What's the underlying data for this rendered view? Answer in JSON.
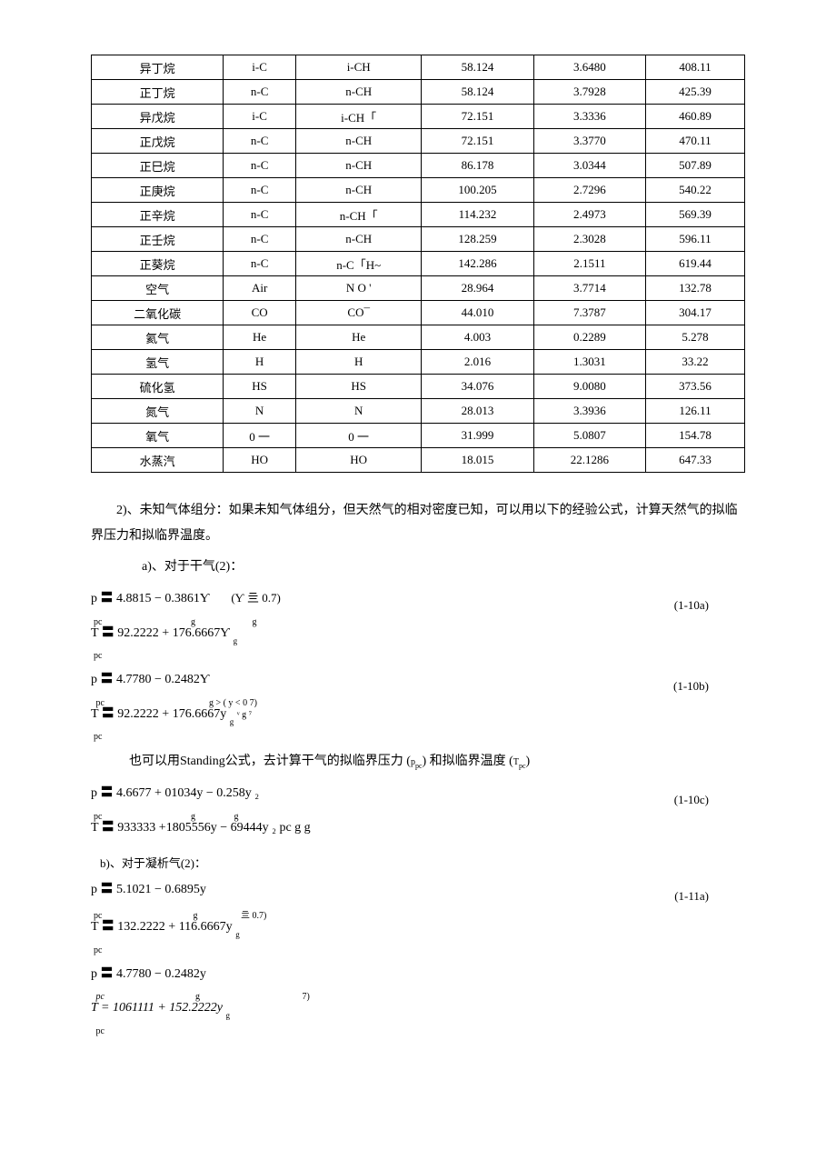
{
  "table": {
    "rows": [
      [
        "异丁烷",
        "i-C",
        "i-CH",
        "58.124",
        "3.6480",
        "408.11"
      ],
      [
        "正丁烷",
        "n-C",
        "n-CH",
        "58.124",
        "3.7928",
        "425.39"
      ],
      [
        "异戊烷",
        "i-C",
        "i-CH「",
        "72.151",
        "3.3336",
        "460.89"
      ],
      [
        "正戊烷",
        "n-C",
        "n-CH",
        "72.151",
        "3.3770",
        "470.11"
      ],
      [
        "正巳烷",
        "n-C",
        "n-CH",
        "86.178",
        "3.0344",
        "507.89"
      ],
      [
        "正庚烷",
        "n-C",
        "n-CH",
        "100.205",
        "2.7296",
        "540.22"
      ],
      [
        "正辛烷",
        "n-C",
        "n-CH「",
        "114.232",
        "2.4973",
        "569.39"
      ],
      [
        "正壬烷",
        "n-C",
        "n-CH",
        "128.259",
        "2.3028",
        "596.11"
      ],
      [
        "正葵烷",
        "n-C",
        "n-C「H~",
        "142.286",
        "2.1511",
        "619.44"
      ],
      [
        "空气",
        "Air",
        "N  O '",
        "28.964",
        "3.7714",
        "132.78"
      ],
      [
        "二氧化碳",
        "CO",
        "CO¯",
        "44.010",
        "7.3787",
        "304.17"
      ],
      [
        "氦气",
        "He",
        "He",
        "4.003",
        "0.2289",
        "5.278"
      ],
      [
        "氢气",
        "H",
        "H",
        "2.016",
        "1.3031",
        "33.22"
      ],
      [
        "硫化氢",
        "HS",
        "HS",
        "34.076",
        "9.0080",
        "373.56"
      ],
      [
        "氮气",
        "N",
        "N",
        "28.013",
        "3.3936",
        "126.11"
      ],
      [
        "氧气",
        "0 一",
        "0 一",
        "31.999",
        "5.0807",
        "154.78"
      ],
      [
        "水蒸汽",
        "HO",
        "HO",
        "18.015",
        "22.1286",
        "647.33"
      ]
    ]
  },
  "para1": "2)、未知气体组分：如果未知气体组分，但天然气的相对密度已知，可以用以下的经验公式，计算天然气的拟临界压力和拟临界温度。",
  "para2": "a)、对于干气(2)：",
  "eq10a": {
    "l1": "p 〓 4.8815 − 0.3861Ƴ",
    "l2": "T 〓 92.2222 + 176.6667Ƴ",
    "cond": "(Ƴ 亖 0.7)",
    "num": "(1-10a)"
  },
  "eq10b": {
    "l1": "p 〓 4.7780 − 0.2482Ƴ",
    "l2": "T 〓 92.2222 + 176.6667y",
    "cond": "g > ( y < 0 7)",
    "tail": "ᵛ g ⁷",
    "num": "(1-10b)"
  },
  "para3_a": "也可以用Standing公式，去计算干气的拟临界压力 (",
  "para3_b": ") 和拟临界温度 (",
  "para3_c": ")",
  "sym_ppc": "p",
  "sym_tpc": "T",
  "sym_pc": "pc",
  "eq10c": {
    "l1": "p 〓 4.6677 + 01034y − 0.258y ₂",
    "l2": "T 〓 933333 +1805556y − 69444y ₂ pc  g      g",
    "num": "(1-10c)"
  },
  "para4": "b)、对于凝析气(2)：",
  "eq11a": {
    "l1": "p 〓 5.1021 − 0.6895y",
    "l2": "T 〓 132.2222 + 116.6667y",
    "cond": "亖 0.7)",
    "num": "(1-11a)"
  },
  "eq_last": {
    "l1": "p 〓 4.7780 − 0.2482y",
    "l2": "T = 1061111 + 152.2222y",
    "cond": "7)"
  }
}
